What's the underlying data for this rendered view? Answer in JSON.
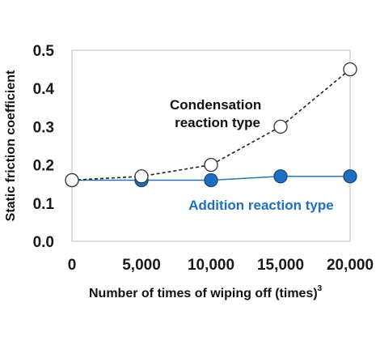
{
  "chart_data": {
    "type": "line",
    "xlabel": "Number of times of wiping off (times)",
    "xlabel_superscript": "3",
    "ylabel": "Static friction coefficient",
    "x": [
      0,
      5000,
      10000,
      15000,
      20000
    ],
    "xlim": [
      0,
      20000
    ],
    "ylim": [
      0.0,
      0.5
    ],
    "x_tick_labels": [
      "0",
      "5,000",
      "10,000",
      "15,000",
      "20,000"
    ],
    "y_tick_labels": [
      "0.0",
      "0.1",
      "0.2",
      "0.3",
      "0.4",
      "0.5"
    ],
    "y_ticks": [
      0.0,
      0.1,
      0.2,
      0.3,
      0.4,
      0.5
    ],
    "grid": false,
    "series": [
      {
        "name": "Condensation reaction type",
        "name_lines": [
          "Condensation",
          "reaction type"
        ],
        "values": [
          0.16,
          0.17,
          0.2,
          0.3,
          0.45
        ],
        "color": "#222222",
        "line_style": "dashed",
        "marker": "open-circle"
      },
      {
        "name": "Addition reaction type",
        "name_lines": [
          "Addition reaction type"
        ],
        "values": [
          0.16,
          0.16,
          0.16,
          0.17,
          0.17
        ],
        "color": "#2e75b6",
        "marker_fill": "#1f6fc0",
        "line_style": "solid",
        "marker": "filled-circle"
      }
    ]
  }
}
